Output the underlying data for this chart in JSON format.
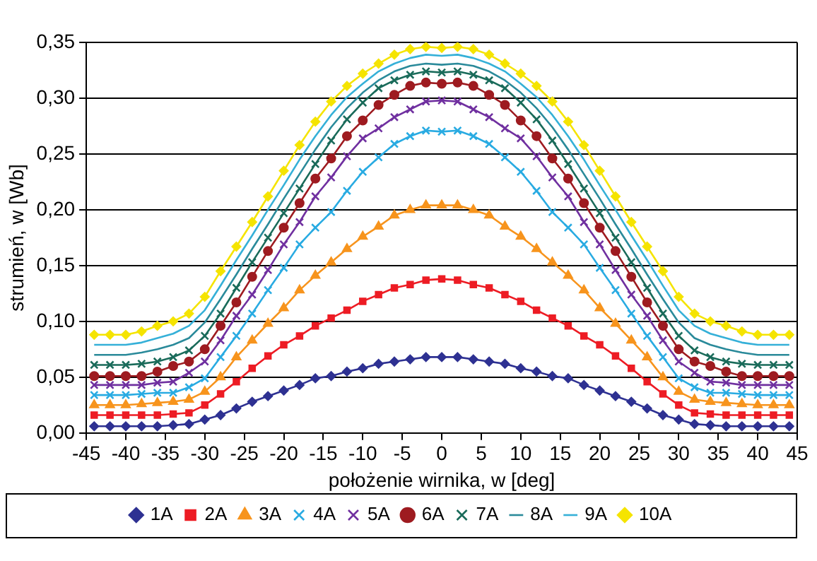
{
  "chart_data": {
    "type": "line",
    "xlabel": "położenie wirnika, w [deg]",
    "ylabel": "strumień, w [Wb]",
    "x": [
      -44,
      -42,
      -40,
      -38,
      -36,
      -34,
      -32,
      -30,
      -28,
      -26,
      -24,
      -22,
      -20,
      -18,
      -16,
      -14,
      -12,
      -10,
      -8,
      -6,
      -4,
      -2,
      0,
      2,
      4,
      6,
      8,
      10,
      12,
      14,
      16,
      18,
      20,
      22,
      24,
      26,
      28,
      30,
      32,
      34,
      36,
      38,
      40,
      42,
      44
    ],
    "xlim": [
      -45,
      45
    ],
    "xticks": [
      -45,
      -40,
      -35,
      -30,
      -25,
      -20,
      -15,
      -10,
      -5,
      0,
      5,
      10,
      15,
      20,
      25,
      30,
      35,
      40,
      45
    ],
    "ylim": [
      0,
      0.35
    ],
    "yticks": [
      {
        "value": 0,
        "label": "0,00"
      },
      {
        "value": 0.05,
        "label": "0,05"
      },
      {
        "value": 0.1,
        "label": "0,10"
      },
      {
        "value": 0.15,
        "label": "0,15"
      },
      {
        "value": 0.2,
        "label": "0,20"
      },
      {
        "value": 0.25,
        "label": "0,25"
      },
      {
        "value": 0.3,
        "label": "0,30"
      },
      {
        "value": 0.35,
        "label": "0,35"
      }
    ],
    "grid": "y",
    "legend": "bottom",
    "line_style": "solid",
    "series": [
      {
        "name": "1A",
        "color": "#2e3192",
        "marker": "diamond",
        "values": [
          0.006,
          0.006,
          0.006,
          0.006,
          0.006,
          0.007,
          0.008,
          0.012,
          0.016,
          0.022,
          0.028,
          0.033,
          0.038,
          0.043,
          0.049,
          0.051,
          0.055,
          0.058,
          0.062,
          0.064,
          0.066,
          0.068,
          0.068,
          0.068,
          0.066,
          0.064,
          0.062,
          0.058,
          0.055,
          0.051,
          0.049,
          0.043,
          0.038,
          0.033,
          0.028,
          0.022,
          0.016,
          0.012,
          0.008,
          0.007,
          0.006,
          0.006,
          0.006,
          0.006,
          0.006
        ]
      },
      {
        "name": "2A",
        "color": "#ed1c24",
        "marker": "square",
        "values": [
          0.016,
          0.016,
          0.016,
          0.016,
          0.016,
          0.017,
          0.018,
          0.025,
          0.035,
          0.046,
          0.058,
          0.069,
          0.079,
          0.087,
          0.096,
          0.103,
          0.11,
          0.118,
          0.124,
          0.13,
          0.133,
          0.137,
          0.138,
          0.137,
          0.133,
          0.13,
          0.124,
          0.118,
          0.11,
          0.103,
          0.096,
          0.087,
          0.079,
          0.069,
          0.058,
          0.046,
          0.035,
          0.025,
          0.018,
          0.017,
          0.016,
          0.016,
          0.016,
          0.016,
          0.016
        ]
      },
      {
        "name": "3A",
        "color": "#f7941d",
        "marker": "triangle",
        "values": [
          0.025,
          0.025,
          0.025,
          0.026,
          0.027,
          0.028,
          0.03,
          0.037,
          0.05,
          0.068,
          0.083,
          0.098,
          0.112,
          0.128,
          0.141,
          0.153,
          0.165,
          0.176,
          0.185,
          0.195,
          0.2,
          0.204,
          0.204,
          0.204,
          0.2,
          0.195,
          0.185,
          0.176,
          0.165,
          0.153,
          0.141,
          0.128,
          0.112,
          0.098,
          0.083,
          0.068,
          0.05,
          0.037,
          0.03,
          0.028,
          0.027,
          0.026,
          0.025,
          0.025,
          0.025
        ]
      },
      {
        "name": "4A",
        "color": "#29abe2",
        "marker": "cross",
        "values": [
          0.034,
          0.034,
          0.034,
          0.035,
          0.036,
          0.036,
          0.041,
          0.049,
          0.068,
          0.087,
          0.107,
          0.128,
          0.148,
          0.169,
          0.184,
          0.198,
          0.217,
          0.234,
          0.247,
          0.259,
          0.266,
          0.271,
          0.27,
          0.271,
          0.266,
          0.259,
          0.247,
          0.234,
          0.217,
          0.198,
          0.184,
          0.169,
          0.148,
          0.128,
          0.107,
          0.087,
          0.068,
          0.049,
          0.041,
          0.036,
          0.036,
          0.035,
          0.034,
          0.034,
          0.034
        ]
      },
      {
        "name": "5A",
        "color": "#7030a0",
        "marker": "cross",
        "values": [
          0.043,
          0.043,
          0.043,
          0.043,
          0.045,
          0.046,
          0.054,
          0.064,
          0.083,
          0.105,
          0.124,
          0.146,
          0.169,
          0.189,
          0.212,
          0.229,
          0.248,
          0.264,
          0.273,
          0.283,
          0.29,
          0.297,
          0.298,
          0.297,
          0.29,
          0.283,
          0.273,
          0.264,
          0.248,
          0.229,
          0.212,
          0.189,
          0.169,
          0.146,
          0.124,
          0.105,
          0.083,
          0.064,
          0.054,
          0.046,
          0.045,
          0.043,
          0.043,
          0.043,
          0.043
        ]
      },
      {
        "name": "6A",
        "color": "#9e1b20",
        "marker": "circle",
        "values": [
          0.051,
          0.051,
          0.051,
          0.051,
          0.055,
          0.06,
          0.064,
          0.075,
          0.096,
          0.117,
          0.14,
          0.163,
          0.184,
          0.206,
          0.228,
          0.246,
          0.266,
          0.28,
          0.294,
          0.303,
          0.311,
          0.314,
          0.313,
          0.314,
          0.311,
          0.303,
          0.294,
          0.28,
          0.266,
          0.246,
          0.228,
          0.206,
          0.184,
          0.163,
          0.14,
          0.117,
          0.096,
          0.075,
          0.064,
          0.06,
          0.055,
          0.051,
          0.051,
          0.051,
          0.051
        ]
      },
      {
        "name": "7A",
        "color": "#1a6b5a",
        "marker": "cross",
        "values": [
          0.061,
          0.061,
          0.061,
          0.062,
          0.064,
          0.068,
          0.074,
          0.087,
          0.107,
          0.13,
          0.153,
          0.175,
          0.197,
          0.219,
          0.241,
          0.262,
          0.281,
          0.296,
          0.309,
          0.316,
          0.321,
          0.324,
          0.323,
          0.324,
          0.321,
          0.316,
          0.309,
          0.296,
          0.281,
          0.262,
          0.241,
          0.219,
          0.197,
          0.175,
          0.153,
          0.13,
          0.107,
          0.087,
          0.074,
          0.068,
          0.064,
          0.062,
          0.061,
          0.061,
          0.061
        ]
      },
      {
        "name": "8A",
        "color": "#2a8a9a",
        "marker": "none",
        "values": [
          0.07,
          0.07,
          0.07,
          0.072,
          0.075,
          0.079,
          0.085,
          0.099,
          0.12,
          0.142,
          0.165,
          0.187,
          0.21,
          0.232,
          0.254,
          0.274,
          0.291,
          0.305,
          0.316,
          0.324,
          0.329,
          0.331,
          0.33,
          0.331,
          0.329,
          0.324,
          0.316,
          0.305,
          0.291,
          0.274,
          0.254,
          0.232,
          0.21,
          0.187,
          0.165,
          0.142,
          0.12,
          0.099,
          0.085,
          0.079,
          0.075,
          0.072,
          0.07,
          0.07,
          0.07
        ]
      },
      {
        "name": "9A",
        "color": "#35b0d8",
        "marker": "none",
        "values": [
          0.079,
          0.079,
          0.079,
          0.081,
          0.085,
          0.089,
          0.096,
          0.11,
          0.132,
          0.155,
          0.177,
          0.2,
          0.222,
          0.245,
          0.266,
          0.285,
          0.301,
          0.313,
          0.324,
          0.331,
          0.336,
          0.339,
          0.338,
          0.339,
          0.336,
          0.331,
          0.324,
          0.313,
          0.301,
          0.285,
          0.266,
          0.245,
          0.222,
          0.2,
          0.177,
          0.155,
          0.132,
          0.11,
          0.096,
          0.089,
          0.085,
          0.081,
          0.079,
          0.079,
          0.079
        ]
      },
      {
        "name": "10A",
        "color": "#f5e400",
        "marker": "diamond",
        "values": [
          0.088,
          0.088,
          0.088,
          0.091,
          0.096,
          0.1,
          0.107,
          0.122,
          0.145,
          0.167,
          0.189,
          0.212,
          0.235,
          0.258,
          0.279,
          0.297,
          0.311,
          0.322,
          0.331,
          0.339,
          0.344,
          0.346,
          0.345,
          0.346,
          0.344,
          0.339,
          0.331,
          0.322,
          0.311,
          0.297,
          0.279,
          0.258,
          0.235,
          0.212,
          0.189,
          0.167,
          0.145,
          0.122,
          0.107,
          0.1,
          0.096,
          0.091,
          0.088,
          0.088,
          0.088
        ]
      }
    ]
  }
}
